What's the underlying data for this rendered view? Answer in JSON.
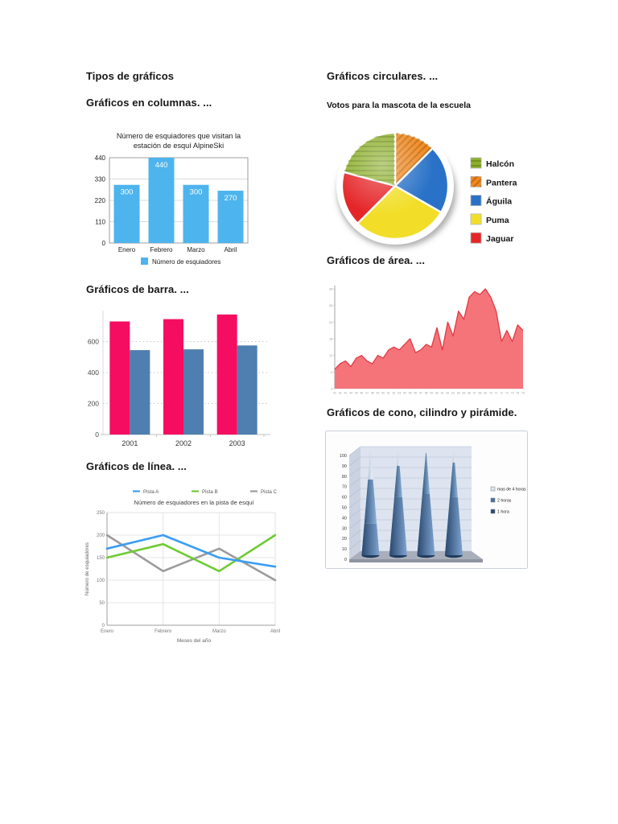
{
  "page": {
    "title": "Tipos de gráficos",
    "background": "#ffffff"
  },
  "headings": {
    "columns": "Gráficos en columnas. ...",
    "circular": "Gráficos circulares. ...",
    "bar": "Gráficos de barra. ...",
    "area": "Gráficos de área. ...",
    "line": "Gráficos de línea. ...",
    "cone": "Gráficos de cono, cilindro y pirámide."
  },
  "chart_data": [
    {
      "id": "columnas",
      "type": "bar",
      "title": "Número de esquiadores que visitan la estación de esquí AlpineSki",
      "title_lines": [
        "Número de esquiadores que visitan la",
        "estación de esquí AlpineSki"
      ],
      "categories": [
        "Enero",
        "Febrero",
        "Marzo",
        "Abril"
      ],
      "values": [
        300,
        440,
        300,
        270
      ],
      "bar_labels": [
        "300",
        "440",
        "300",
        "270"
      ],
      "yticks": [
        0,
        110,
        220,
        330,
        440
      ],
      "ylim": [
        0,
        440
      ],
      "bar_color": "#4db4ee",
      "grid": true,
      "legend_position": "bottom",
      "legend": [
        {
          "label": "Número de esquiadores",
          "color": "#4db4ee"
        }
      ]
    },
    {
      "id": "circulares",
      "type": "pie",
      "title": "Votos para la mascota de la escuela",
      "start_angle_deg": -90,
      "direction": "clockwise",
      "slices": [
        {
          "label": "Pantera",
          "percent": 12.5,
          "color": "#f0891f",
          "pattern": "diagonal-lines"
        },
        {
          "label": "Águila",
          "percent": 20.8,
          "color": "#2a72c8",
          "pattern": "none"
        },
        {
          "label": "Puma",
          "percent": 29.2,
          "color": "#f2de29",
          "pattern": "none"
        },
        {
          "label": "Jaguar",
          "percent": 16.7,
          "color": "#e52629",
          "pattern": "none"
        },
        {
          "label": "Halcón",
          "percent": 20.8,
          "color": "#8cb02c",
          "pattern": "horizontal-lines"
        }
      ],
      "legend_order": [
        "Halcón",
        "Pantera",
        "Águila",
        "Puma",
        "Jaguar"
      ],
      "legend_position": "right"
    },
    {
      "id": "barras",
      "type": "bar",
      "categories": [
        "2001",
        "2002",
        "2003"
      ],
      "series": [
        {
          "name": "serie-rosa",
          "color": "#f50d62",
          "values": [
            730,
            745,
            775
          ]
        },
        {
          "name": "serie-azul",
          "color": "#4e7fb0",
          "values": [
            545,
            550,
            575
          ]
        }
      ],
      "yticks": [
        0,
        200,
        400,
        600
      ],
      "ylim": [
        0,
        800
      ],
      "grid": "dotted"
    },
    {
      "id": "area",
      "type": "area",
      "values": [
        7,
        9,
        10,
        8,
        11,
        12,
        10,
        9,
        12,
        11,
        14,
        15,
        14,
        16,
        18,
        13,
        14,
        16,
        15,
        22,
        14,
        24,
        19,
        28,
        25,
        33,
        35,
        34,
        36,
        33,
        28,
        17,
        21,
        17,
        23,
        21
      ],
      "ylim": [
        0,
        36
      ],
      "ytick_labels": [
        "0",
        "6",
        "12",
        "18",
        "24",
        "30",
        "36"
      ],
      "xtick_labels": [
        "41",
        "42",
        "43",
        "44",
        "45",
        "46",
        "47",
        "48",
        "49",
        "50",
        "51",
        "52",
        "53",
        "54",
        "55",
        "56",
        "57",
        "58",
        "59",
        "60",
        "61",
        "62",
        "63",
        "64",
        "65",
        "66",
        "67",
        "68",
        "69",
        "70",
        "71",
        "72",
        "73",
        "74",
        "75",
        "76"
      ],
      "fill_color": "#f4747a",
      "line_color": "#e03b42"
    },
    {
      "id": "linea",
      "type": "line",
      "title": "Número de esquiadores en la pista de esquí",
      "xlabel": "Meses del año",
      "ylabel": "Número de esquiadores",
      "categories": [
        "Enero",
        "Febrero",
        "Marzo",
        "Abril"
      ],
      "series": [
        {
          "name": "Pista A",
          "color": "#3b9df2",
          "values": [
            170,
            200,
            150,
            130
          ]
        },
        {
          "name": "Pista B",
          "color": "#6ecb33",
          "values": [
            150,
            180,
            120,
            200
          ]
        },
        {
          "name": "Pista C",
          "color": "#9b9b9b",
          "values": [
            200,
            120,
            170,
            100
          ]
        }
      ],
      "yticks": [
        0,
        50,
        100,
        150,
        200,
        250
      ],
      "ylim": [
        0,
        250
      ],
      "legend_position": "top",
      "grid": true
    },
    {
      "id": "cono",
      "type": "bar",
      "subtype": "cone-3d",
      "yticks": [
        0,
        10,
        20,
        30,
        40,
        50,
        60,
        70,
        80,
        90,
        100
      ],
      "ylim": [
        0,
        100
      ],
      "cones": [
        {
          "segments": [
            30,
            72,
            100
          ]
        },
        {
          "segments": [
            55,
            85,
            100
          ]
        },
        {
          "segments": [
            58,
            97,
            100
          ]
        },
        {
          "segments": [
            55,
            88,
            100
          ]
        }
      ],
      "segment_gradients": [
        [
          "#27476e",
          "#7fa4d0"
        ],
        [
          "#33597f",
          "#8fb2da"
        ],
        [
          "#b7c5d9",
          "#eef3fa"
        ]
      ],
      "legend_position": "right",
      "legend": [
        {
          "label": "mas de 4 horas",
          "color": "#dde6f1"
        },
        {
          "label": "2 horas",
          "color": "#4a72a4"
        },
        {
          "label": "1 hora",
          "color": "#2c4d76"
        }
      ]
    }
  ]
}
